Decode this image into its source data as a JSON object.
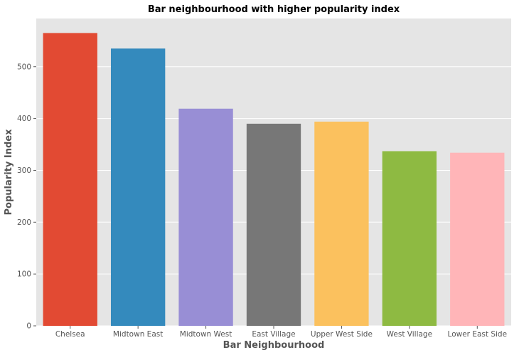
{
  "chart_data": {
    "type": "bar",
    "title": "Bar neighbourhood with higher popularity index",
    "xlabel": "Bar Neighbourhood",
    "ylabel": "Popularity Index",
    "categories": [
      "Chelsea",
      "Midtown East",
      "Midtown West",
      "East Village",
      "Upper West Side",
      "West Village",
      "Lower East Side"
    ],
    "values": [
      565,
      535,
      419,
      390,
      394,
      337,
      334
    ],
    "colors": [
      "#E24A33",
      "#348ABD",
      "#988ED5",
      "#777777",
      "#FBC15E",
      "#8EBA42",
      "#FFB5B8"
    ],
    "ylim": [
      0,
      593
    ],
    "yticks": [
      0,
      100,
      200,
      300,
      400,
      500
    ],
    "grid": true,
    "background": "#E5E5E5"
  }
}
